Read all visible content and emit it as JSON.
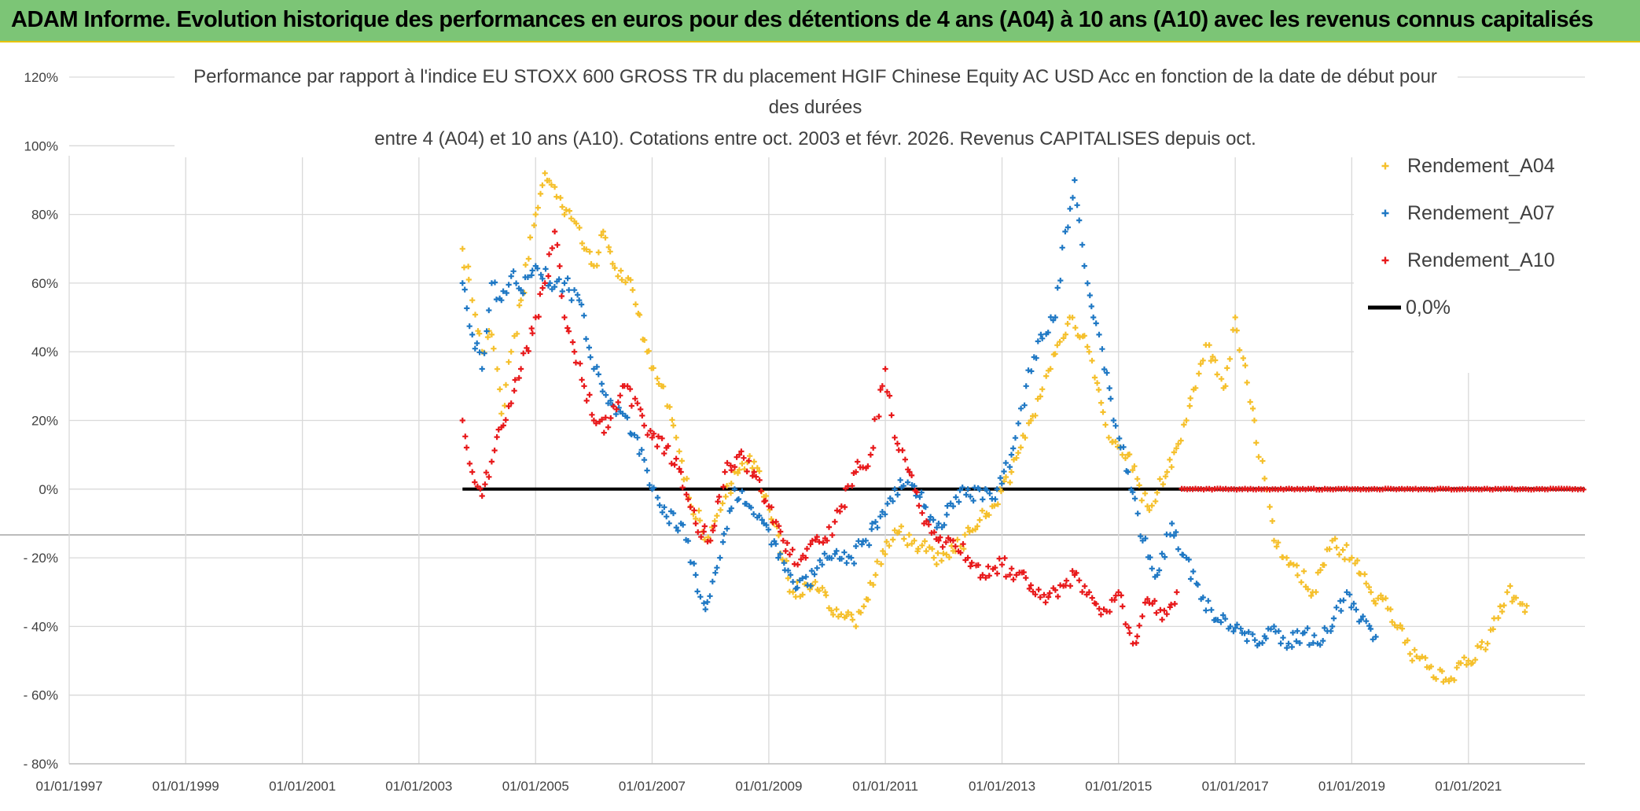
{
  "header": {
    "title": "ADAM Informe. Evolution historique des performances en euros pour des détentions de 4 ans (A04) à 10 ans (A10) avec les revenus connus capitalisés"
  },
  "chart_data": {
    "type": "scatter",
    "title_lines": [
      "Performance par rapport à l'indice EU STOXX 600 GROSS TR  du placement HGIF Chinese Equity AC USD Acc en fonction de la date de début pour",
      "des durées",
      "entre 4 (A04) et 10 ans (A10). Cotations entre oct. 2003 et févr. 2026. Revenus CAPITALISES depuis oct."
    ],
    "x_tick_labels": [
      "01/01/1997",
      "01/01/1999",
      "01/01/2001",
      "01/01/2003",
      "01/01/2005",
      "01/01/2007",
      "01/01/2009",
      "01/01/2011",
      "01/01/2013",
      "01/01/2015",
      "01/01/2017",
      "01/01/2019",
      "01/01/2021"
    ],
    "y_tick_labels": [
      "120%",
      "100%",
      "80%",
      "60%",
      "40%",
      "20%",
      "0%",
      "- 20%",
      "- 40%",
      "- 60%",
      "- 80%"
    ],
    "xlim": [
      "1997-01-01",
      "2023-01-01"
    ],
    "ylim": [
      -80,
      120
    ],
    "grid": true,
    "legend_position": "top-right",
    "series": [
      {
        "name": "Rendement_A04",
        "color": "#f5c02c",
        "marker": "plus",
        "points": [
          [
            "2003-10-01",
            70
          ],
          [
            "2003-12-01",
            55
          ],
          [
            "2004-02-01",
            40
          ],
          [
            "2004-04-01",
            45
          ],
          [
            "2004-06-01",
            22
          ],
          [
            "2004-08-01",
            40
          ],
          [
            "2004-10-01",
            55
          ],
          [
            "2005-01-01",
            80
          ],
          [
            "2005-03-01",
            92
          ],
          [
            "2005-05-01",
            88
          ],
          [
            "2005-07-01",
            80
          ],
          [
            "2005-09-01",
            78
          ],
          [
            "2005-11-01",
            70
          ],
          [
            "2006-01-01",
            65
          ],
          [
            "2006-03-01",
            75
          ],
          [
            "2006-06-01",
            62
          ],
          [
            "2006-09-01",
            58
          ],
          [
            "2006-12-01",
            40
          ],
          [
            "2007-03-01",
            30
          ],
          [
            "2007-06-01",
            15
          ],
          [
            "2007-09-01",
            -5
          ],
          [
            "2008-01-01",
            -15
          ],
          [
            "2008-06-01",
            5
          ],
          [
            "2008-10-01",
            8
          ],
          [
            "2009-02-01",
            -10
          ],
          [
            "2009-06-01",
            -30
          ],
          [
            "2009-10-01",
            -28
          ],
          [
            "2010-03-01",
            -35
          ],
          [
            "2010-07-01",
            -40
          ],
          [
            "2010-11-01",
            -25
          ],
          [
            "2011-03-01",
            -12
          ],
          [
            "2011-07-01",
            -15
          ],
          [
            "2011-11-01",
            -20
          ],
          [
            "2012-03-01",
            -18
          ],
          [
            "2012-07-01",
            -12
          ],
          [
            "2012-11-01",
            -5
          ],
          [
            "2013-03-01",
            5
          ],
          [
            "2013-07-01",
            20
          ],
          [
            "2013-11-01",
            35
          ],
          [
            "2014-03-01",
            50
          ],
          [
            "2014-07-01",
            40
          ],
          [
            "2014-11-01",
            15
          ],
          [
            "2015-03-01",
            10
          ],
          [
            "2015-07-01",
            -5
          ],
          [
            "2015-11-01",
            5
          ],
          [
            "2016-03-01",
            20
          ],
          [
            "2016-07-01",
            42
          ],
          [
            "2016-11-01",
            30
          ],
          [
            "2017-01-01",
            50
          ],
          [
            "2017-05-01",
            20
          ],
          [
            "2017-09-01",
            -15
          ],
          [
            "2018-01-01",
            -22
          ],
          [
            "2018-05-01",
            -30
          ],
          [
            "2018-09-01",
            -15
          ],
          [
            "2019-01-01",
            -20
          ],
          [
            "2019-05-01",
            -30
          ],
          [
            "2019-09-01",
            -35
          ],
          [
            "2020-01-01",
            -48
          ],
          [
            "2020-05-01",
            -52
          ],
          [
            "2020-09-01",
            -56
          ],
          [
            "2021-01-01",
            -50
          ],
          [
            "2021-05-01",
            -45
          ],
          [
            "2021-09-01",
            -30
          ],
          [
            "2022-01-01",
            -34
          ]
        ]
      },
      {
        "name": "Rendement_A07",
        "color": "#1f78c4",
        "marker": "plus",
        "points": [
          [
            "2003-10-01",
            60
          ],
          [
            "2003-12-01",
            45
          ],
          [
            "2004-02-01",
            35
          ],
          [
            "2004-04-01",
            60
          ],
          [
            "2004-06-01",
            55
          ],
          [
            "2004-08-01",
            62
          ],
          [
            "2004-10-01",
            58
          ],
          [
            "2005-01-01",
            65
          ],
          [
            "2005-04-01",
            60
          ],
          [
            "2005-07-01",
            60
          ],
          [
            "2005-10-01",
            55
          ],
          [
            "2006-01-01",
            35
          ],
          [
            "2006-04-01",
            25
          ],
          [
            "2006-07-01",
            22
          ],
          [
            "2006-10-01",
            15
          ],
          [
            "2007-01-01",
            0
          ],
          [
            "2007-04-01",
            -8
          ],
          [
            "2007-07-01",
            -10
          ],
          [
            "2007-10-01",
            -25
          ],
          [
            "2007-12-01",
            -35
          ],
          [
            "2008-03-01",
            -20
          ],
          [
            "2008-06-01",
            0
          ],
          [
            "2008-09-01",
            -5
          ],
          [
            "2008-12-01",
            -10
          ],
          [
            "2009-03-01",
            -20
          ],
          [
            "2009-06-01",
            -27
          ],
          [
            "2009-09-01",
            -28
          ],
          [
            "2009-12-01",
            -22
          ],
          [
            "2010-03-01",
            -18
          ],
          [
            "2010-06-01",
            -20
          ],
          [
            "2010-09-01",
            -15
          ],
          [
            "2010-12-01",
            -8
          ],
          [
            "2011-03-01",
            0
          ],
          [
            "2011-06-01",
            5
          ],
          [
            "2011-09-01",
            -5
          ],
          [
            "2011-12-01",
            -10
          ],
          [
            "2012-03-01",
            -5
          ],
          [
            "2012-06-01",
            0
          ],
          [
            "2012-09-01",
            -3
          ],
          [
            "2012-12-01",
            0
          ],
          [
            "2013-03-01",
            10
          ],
          [
            "2013-06-01",
            30
          ],
          [
            "2013-09-01",
            45
          ],
          [
            "2013-12-01",
            50
          ],
          [
            "2014-02-01",
            75
          ],
          [
            "2014-04-01",
            90
          ],
          [
            "2014-06-01",
            65
          ],
          [
            "2014-09-01",
            45
          ],
          [
            "2014-12-01",
            20
          ],
          [
            "2015-03-01",
            5
          ],
          [
            "2015-06-01",
            -15
          ],
          [
            "2015-09-01",
            -25
          ],
          [
            "2015-12-01",
            -10
          ],
          [
            "2016-03-01",
            -20
          ],
          [
            "2016-06-01",
            -32
          ],
          [
            "2016-09-01",
            -38
          ],
          [
            "2016-12-01",
            -40
          ],
          [
            "2017-03-01",
            -42
          ],
          [
            "2017-06-01",
            -45
          ],
          [
            "2017-09-01",
            -40
          ],
          [
            "2017-12-01",
            -45
          ],
          [
            "2018-03-01",
            -42
          ],
          [
            "2018-06-01",
            -45
          ],
          [
            "2018-09-01",
            -40
          ],
          [
            "2018-12-01",
            -30
          ],
          [
            "2019-03-01",
            -38
          ],
          [
            "2019-06-01",
            -43
          ]
        ]
      },
      {
        "name": "Rendement_A10",
        "color": "#e8191b",
        "marker": "plus",
        "points": [
          [
            "2003-10-01",
            20
          ],
          [
            "2003-12-01",
            5
          ],
          [
            "2004-02-01",
            -2
          ],
          [
            "2004-04-01",
            8
          ],
          [
            "2004-06-01",
            18
          ],
          [
            "2004-08-01",
            25
          ],
          [
            "2004-10-01",
            35
          ],
          [
            "2005-01-01",
            50
          ],
          [
            "2005-03-01",
            60
          ],
          [
            "2005-05-01",
            75
          ],
          [
            "2005-07-01",
            50
          ],
          [
            "2005-09-01",
            40
          ],
          [
            "2005-11-01",
            30
          ],
          [
            "2006-01-01",
            20
          ],
          [
            "2006-04-01",
            18
          ],
          [
            "2006-07-01",
            30
          ],
          [
            "2006-10-01",
            25
          ],
          [
            "2007-01-01",
            15
          ],
          [
            "2007-04-01",
            12
          ],
          [
            "2007-07-01",
            5
          ],
          [
            "2007-10-01",
            -10
          ],
          [
            "2008-01-01",
            -15
          ],
          [
            "2008-04-01",
            5
          ],
          [
            "2008-07-01",
            10
          ],
          [
            "2008-10-01",
            5
          ],
          [
            "2009-01-01",
            -5
          ],
          [
            "2009-04-01",
            -15
          ],
          [
            "2009-07-01",
            -22
          ],
          [
            "2009-10-01",
            -15
          ],
          [
            "2010-01-01",
            -15
          ],
          [
            "2010-04-01",
            -5
          ],
          [
            "2010-07-01",
            5
          ],
          [
            "2010-10-01",
            10
          ],
          [
            "2011-01-01",
            35
          ],
          [
            "2011-03-01",
            15
          ],
          [
            "2011-06-01",
            5
          ],
          [
            "2011-09-01",
            -10
          ],
          [
            "2011-12-01",
            -15
          ],
          [
            "2012-03-01",
            -15
          ],
          [
            "2012-06-01",
            -20
          ],
          [
            "2012-09-01",
            -25
          ],
          [
            "2013-01-01",
            -22
          ],
          [
            "2013-04-01",
            -25
          ],
          [
            "2013-07-01",
            -28
          ],
          [
            "2013-10-01",
            -33
          ],
          [
            "2014-01-01",
            -28
          ],
          [
            "2014-04-01",
            -25
          ],
          [
            "2014-07-01",
            -30
          ],
          [
            "2014-10-01",
            -35
          ],
          [
            "2015-01-01",
            -30
          ],
          [
            "2015-04-01",
            -45
          ],
          [
            "2015-07-01",
            -32
          ],
          [
            "2015-10-01",
            -38
          ],
          [
            "2016-01-01",
            -30
          ]
        ]
      },
      {
        "name": "0,0%",
        "color": "#000000",
        "marker": "line",
        "points": [
          [
            "2003-10-01",
            0
          ],
          [
            "2022-12-31",
            0
          ]
        ]
      }
    ],
    "zero_band": {
      "color": "#e8191b",
      "from": "2016-02-01",
      "to": "2022-12-31",
      "value": 0
    }
  }
}
